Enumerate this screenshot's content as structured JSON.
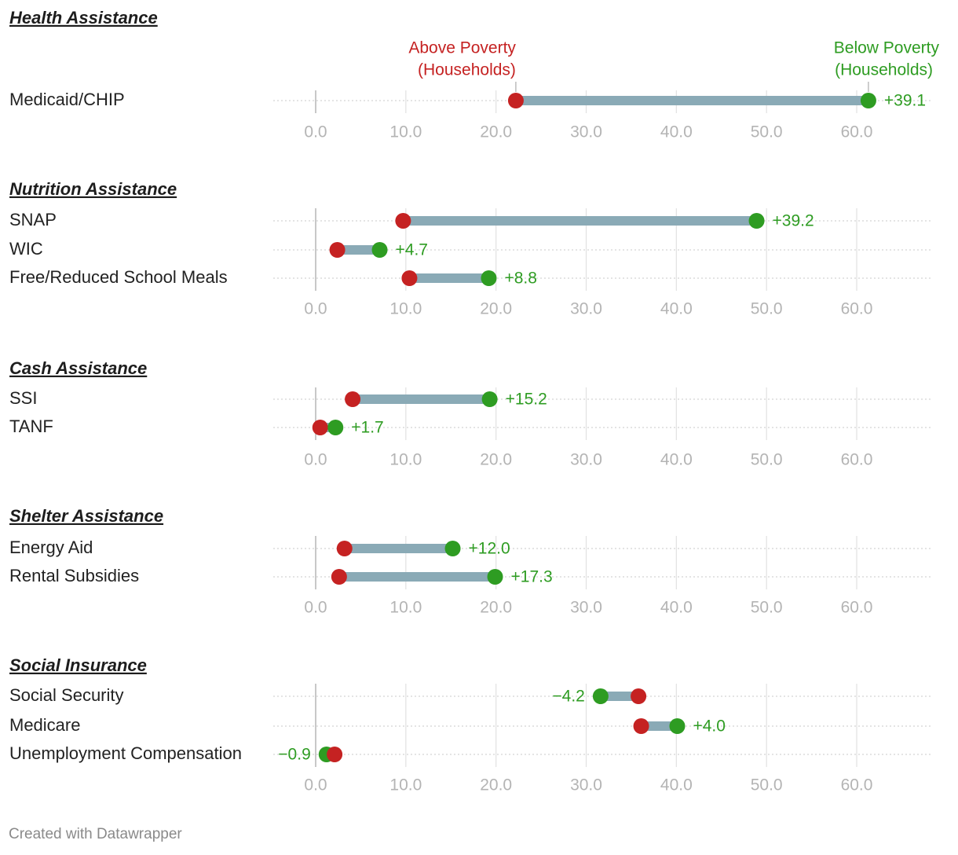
{
  "colors": {
    "above": "#c52222",
    "below": "#2e9c22",
    "bar": "#8aaab6",
    "grid": "#e1e1e1",
    "zero": "#c8c8c8",
    "dots_row": "#d4d4d4",
    "tick": "#b4b4b4"
  },
  "legend": {
    "above_line1": "Above Poverty",
    "above_line2": "(Households)",
    "below_line1": "Below Poverty",
    "below_line2": "(Households)"
  },
  "footer": "Created with Datawrapper",
  "chart_data": {
    "type": "range-dot",
    "xlim": [
      0,
      60
    ],
    "ticks": [
      0,
      10,
      20,
      30,
      40,
      50,
      60
    ],
    "tick_labels": [
      "0.0",
      "10.0",
      "20.0",
      "30.0",
      "40.0",
      "50.0",
      "60.0"
    ],
    "series": [
      {
        "name": "Above Poverty (Households)",
        "key": "above"
      },
      {
        "name": "Below Poverty (Households)",
        "key": "below"
      }
    ],
    "groups": [
      {
        "title": "Health Assistance",
        "rows": [
          {
            "label": "Medicaid/CHIP",
            "above": 22.2,
            "below": 61.3,
            "diff": "+39.1"
          }
        ]
      },
      {
        "title": "Nutrition Assistance",
        "rows": [
          {
            "label": "SNAP",
            "above": 9.7,
            "below": 48.9,
            "diff": "+39.2"
          },
          {
            "label": "WIC",
            "above": 2.4,
            "below": 7.1,
            "diff": "+4.7"
          },
          {
            "label": "Free/Reduced School Meals",
            "above": 10.4,
            "below": 19.2,
            "diff": "+8.8"
          }
        ]
      },
      {
        "title": "Cash Assistance",
        "rows": [
          {
            "label": "SSI",
            "above": 4.1,
            "below": 19.3,
            "diff": "+15.2"
          },
          {
            "label": "TANF",
            "above": 0.5,
            "below": 2.2,
            "diff": "+1.7"
          }
        ]
      },
      {
        "title": "Shelter Assistance",
        "rows": [
          {
            "label": "Energy Aid",
            "above": 3.2,
            "below": 15.2,
            "diff": "+12.0"
          },
          {
            "label": "Rental Subsidies",
            "above": 2.6,
            "below": 19.9,
            "diff": "+17.3"
          }
        ]
      },
      {
        "title": "Social Insurance",
        "rows": [
          {
            "label": "Social Security",
            "above": 35.8,
            "below": 31.6,
            "diff": "−4.2"
          },
          {
            "label": "Medicare",
            "above": 36.1,
            "below": 40.1,
            "diff": "+4.0"
          },
          {
            "label": "Unemployment Compensation",
            "above": 2.1,
            "below": 1.2,
            "diff": "−0.9"
          }
        ]
      }
    ]
  }
}
